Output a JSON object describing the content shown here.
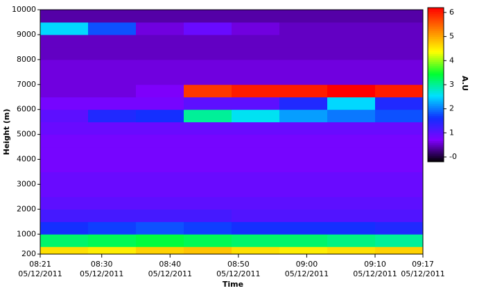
{
  "chart_data": {
    "type": "heatmap",
    "x_label": "Time",
    "y_label": "Height (m)",
    "colorbar_label": "A.U",
    "xlim": [
      "08:21",
      "09:17"
    ],
    "xticks": [
      {
        "time": "08:21",
        "date": "05/12/2011"
      },
      {
        "time": "08:30",
        "date": "05/12/2011"
      },
      {
        "time": "08:40",
        "date": "05/12/2011"
      },
      {
        "time": "08:50",
        "date": "05/12/2011"
      },
      {
        "time": "09:00",
        "date": "05/12/2011"
      },
      {
        "time": "09:10",
        "date": "05/12/2011"
      },
      {
        "time": "09:17",
        "date": "05/12/2011"
      }
    ],
    "ylim": [
      200,
      10000
    ],
    "yticks": [
      200,
      1000,
      2000,
      3000,
      4000,
      5000,
      6000,
      7000,
      8000,
      9000,
      10000
    ],
    "x_bins": [
      "08:21",
      "08:28",
      "08:35",
      "08:42",
      "08:49",
      "08:56",
      "09:03",
      "09:10",
      "09:17"
    ],
    "y_bins": [
      200,
      500,
      1000,
      1500,
      2000,
      2500,
      3000,
      3500,
      4000,
      4500,
      5000,
      5500,
      6000,
      6500,
      7000,
      7500,
      8000,
      8500,
      9000,
      9500,
      10000
    ],
    "values": [
      [
        4.6,
        4.5,
        4.7,
        4.8,
        4.6,
        4.5,
        4.6,
        4.7
      ],
      [
        3.2,
        3.3,
        3.4,
        3.3,
        3.2,
        3.2,
        3.1,
        3.0
      ],
      [
        1.6,
        1.7,
        1.8,
        1.7,
        1.6,
        1.6,
        1.6,
        1.5
      ],
      [
        1.2,
        1.2,
        1.2,
        1.2,
        1.1,
        1.1,
        1.1,
        1.1
      ],
      [
        1.0,
        1.0,
        1.0,
        1.0,
        1.0,
        1.0,
        1.0,
        1.0
      ],
      [
        0.9,
        0.9,
        0.9,
        0.9,
        0.9,
        0.9,
        0.9,
        0.9
      ],
      [
        0.9,
        0.9,
        0.9,
        0.9,
        0.9,
        0.9,
        0.9,
        0.9
      ],
      [
        0.8,
        0.8,
        0.8,
        0.8,
        0.8,
        0.8,
        0.8,
        0.8
      ],
      [
        0.8,
        0.8,
        0.8,
        0.8,
        0.8,
        0.8,
        0.8,
        0.8
      ],
      [
        0.8,
        0.8,
        0.8,
        0.8,
        0.8,
        0.8,
        0.8,
        0.8
      ],
      [
        0.9,
        0.9,
        0.9,
        0.9,
        0.9,
        0.9,
        0.9,
        0.9
      ],
      [
        1.0,
        1.5,
        1.6,
        3.0,
        2.6,
        2.2,
        2.0,
        1.8
      ],
      [
        0.8,
        0.8,
        0.8,
        1.0,
        1.0,
        1.5,
        2.5,
        1.5
      ],
      [
        0.6,
        0.6,
        0.7,
        5.8,
        6.0,
        6.0,
        6.2,
        6.0
      ],
      [
        0.6,
        0.6,
        0.6,
        0.6,
        0.6,
        0.6,
        0.6,
        0.6
      ],
      [
        0.6,
        0.6,
        0.6,
        0.6,
        0.6,
        0.6,
        0.6,
        0.6
      ],
      [
        0.5,
        0.5,
        0.5,
        0.5,
        0.5,
        0.5,
        0.5,
        0.5
      ],
      [
        0.5,
        0.5,
        0.5,
        0.5,
        0.5,
        0.5,
        0.5,
        0.5
      ],
      [
        2.5,
        1.8,
        0.6,
        0.9,
        0.6,
        0.5,
        0.5,
        0.5
      ],
      [
        0.4,
        0.4,
        0.4,
        0.4,
        0.4,
        0.4,
        0.4,
        0.4
      ]
    ],
    "colorscale": [
      "#000000",
      "#8000ff",
      "#1030ff",
      "#00e0ff",
      "#00ff30",
      "#ffff00",
      "#ff8000",
      "#ff0000"
    ],
    "clim": [
      -0.2,
      6.2
    ],
    "cticks": [
      {
        "value": 0,
        "label": "-0"
      },
      1,
      2,
      3,
      4,
      5,
      6
    ]
  }
}
